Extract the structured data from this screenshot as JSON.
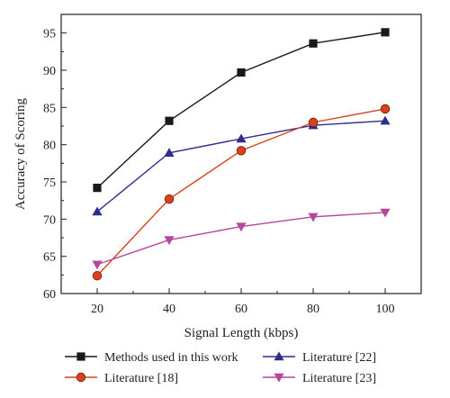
{
  "chart_data": {
    "type": "line",
    "title": "",
    "xlabel": "Signal Length (kbps)",
    "ylabel": "Accuracy of Scoring",
    "x": [
      20,
      40,
      60,
      80,
      100
    ],
    "xticks": [
      20,
      40,
      60,
      80,
      100
    ],
    "yticks": [
      60,
      65,
      70,
      75,
      80,
      85,
      90,
      95
    ],
    "xlim": [
      10,
      110
    ],
    "ylim": [
      60,
      97.5
    ],
    "grid": false,
    "legend_position": "bottom",
    "series": [
      {
        "name": "Methods used in this work",
        "values": [
          74.2,
          83.2,
          89.7,
          93.6,
          95.1
        ],
        "color": "#1a1a1a",
        "marker": "square"
      },
      {
        "name": "Literature [22]",
        "values": [
          71.0,
          78.9,
          80.8,
          82.6,
          83.2
        ],
        "color": "#2e2e8f",
        "marker": "triangle-up"
      },
      {
        "name": "Literature [18]",
        "values": [
          62.4,
          72.7,
          79.2,
          83.0,
          84.8
        ],
        "color": "#d9421b",
        "marker": "circle"
      },
      {
        "name": "Literature [23]",
        "values": [
          63.9,
          67.2,
          69.0,
          70.3,
          70.9
        ],
        "color": "#b5479f",
        "marker": "triangle-down"
      }
    ]
  }
}
